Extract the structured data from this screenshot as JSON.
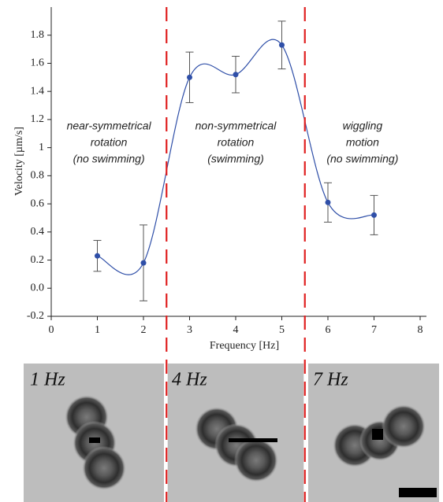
{
  "chart_data": {
    "type": "line",
    "x_label": "Frequency [Hz]",
    "y_label": "Velocity [µm/s]",
    "x": [
      1,
      2,
      3,
      4,
      5,
      6,
      7
    ],
    "values": [
      0.23,
      0.18,
      1.5,
      1.52,
      1.73,
      0.61,
      0.52
    ],
    "errors": [
      0.11,
      0.27,
      0.18,
      0.13,
      0.17,
      0.14,
      0.14
    ],
    "color": "#2f4fa8",
    "xlim": [
      0,
      8
    ],
    "xticks": [
      0,
      1,
      2,
      3,
      4,
      5,
      6,
      7,
      8
    ],
    "ylim": [
      -0.2,
      2.0
    ],
    "yticks": [
      -0.2,
      {
        "value": 0,
        "label": "0.0"
      },
      0.2,
      0.4,
      0.6,
      0.8,
      1,
      1.2,
      1.4,
      1.6,
      1.8
    ],
    "boundaries": [
      2.5,
      5.5
    ],
    "boundary_color": "#e02020",
    "annotations": [
      [
        "near-symmetrical",
        "rotation",
        "(no swimming)"
      ],
      [
        "non-symmetrical",
        "rotation",
        "(swimming)"
      ],
      [
        "wiggling",
        "motion",
        "(no swimming)"
      ]
    ]
  },
  "panels": [
    "1 Hz",
    "4 Hz",
    "7 Hz"
  ]
}
